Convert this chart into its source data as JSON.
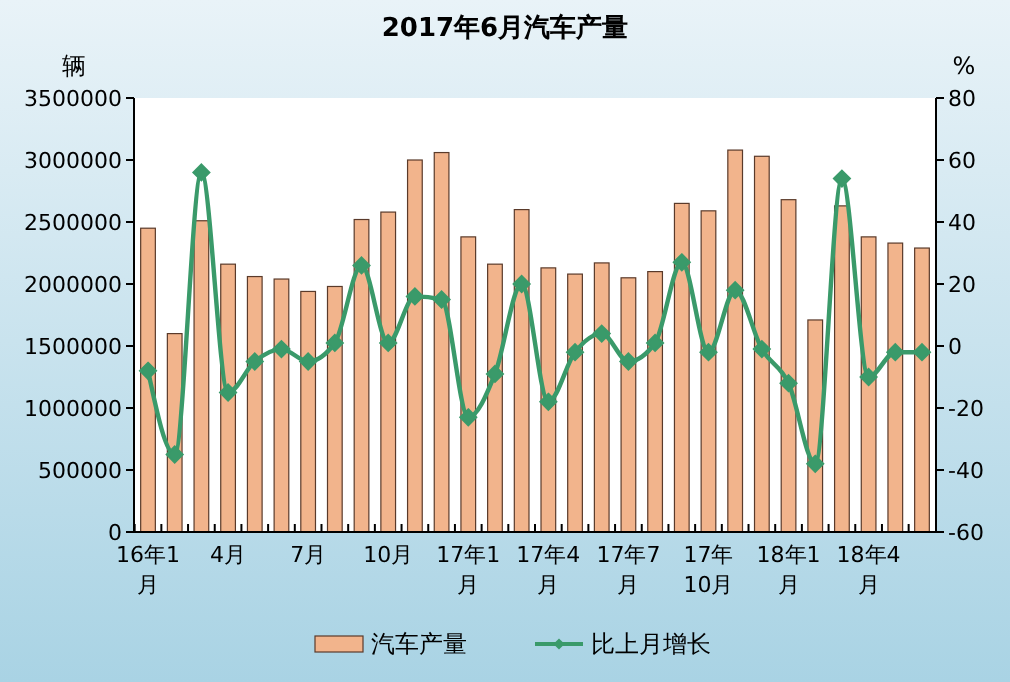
{
  "chart_data": {
    "type": "bar",
    "title": "2017年6月汽车产量",
    "ylabel": "辆",
    "y2label": "%",
    "categories": [
      "16年1月",
      null,
      null,
      "4月",
      null,
      null,
      "7月",
      null,
      null,
      "10月",
      null,
      null,
      "17年1月",
      null,
      null,
      "17年4月",
      null,
      null,
      "17年7月",
      null,
      null,
      "17年10月",
      null,
      null,
      "18年1月",
      null,
      null,
      "18年4月",
      null,
      null
    ],
    "series": [
      {
        "name": "汽车产量",
        "color": "#f2b48c",
        "values": [
          2450000,
          1600000,
          2510000,
          2160000,
          2060000,
          2040000,
          1940000,
          1980000,
          2520000,
          2580000,
          3000000,
          3060000,
          2380000,
          2160000,
          2600000,
          2130000,
          2080000,
          2170000,
          2050000,
          2100000,
          2650000,
          2590000,
          3080000,
          3030000,
          2680000,
          1710000,
          2630000,
          2380000,
          2330000,
          2290000
        ]
      },
      {
        "name": "比上月增长",
        "type": "line",
        "axis": "y2",
        "color": "#3a9a6a",
        "marker": "diamond",
        "values": [
          -8,
          -35,
          56,
          -15,
          -5,
          -1,
          -5,
          1,
          26,
          1,
          16,
          15,
          -23,
          -9,
          20,
          -18,
          -2,
          4,
          -5,
          1,
          27,
          -2,
          18,
          -1,
          -12,
          -38,
          54,
          -10,
          -2,
          -2
        ]
      }
    ],
    "ylim": [
      0,
      3500000
    ],
    "yticks": [
      0,
      500000,
      1000000,
      1500000,
      2000000,
      2500000,
      3000000,
      3500000
    ],
    "y2lim": [
      -60,
      80
    ],
    "y2ticks": [
      -60,
      -40,
      -20,
      0,
      20,
      40,
      60,
      80
    ],
    "grid": false,
    "legend": "bottom"
  }
}
